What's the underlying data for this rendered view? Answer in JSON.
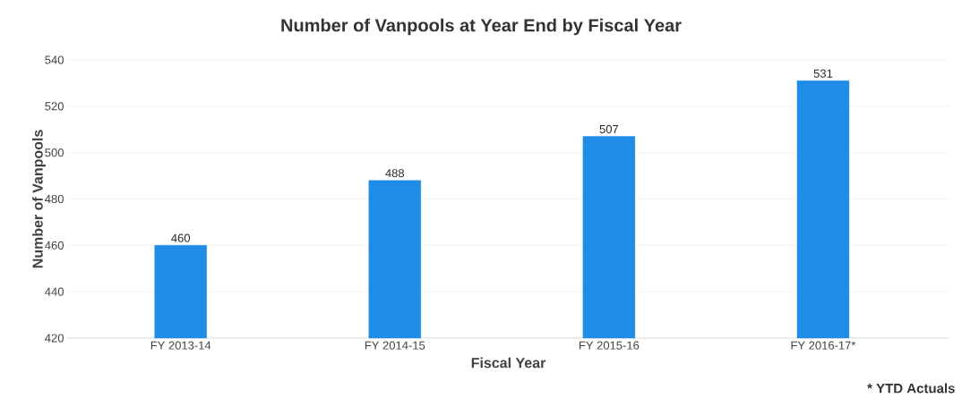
{
  "chart_data": {
    "type": "bar",
    "title": "Number of Vanpools at Year End by Fiscal Year",
    "xlabel": "Fiscal Year",
    "ylabel": "Number of Vanpools",
    "categories": [
      "FY 2013-14",
      "FY 2014-15",
      "FY 2015-16",
      "FY 2016-17*"
    ],
    "values": [
      460,
      488,
      507,
      531
    ],
    "color": "#1f8ce6",
    "ylim": [
      420,
      540
    ],
    "yticks": [
      420,
      440,
      460,
      480,
      500,
      520,
      540
    ],
    "grid": "y",
    "data_labels": true,
    "annotations": [
      "* YTD Actuals"
    ]
  }
}
